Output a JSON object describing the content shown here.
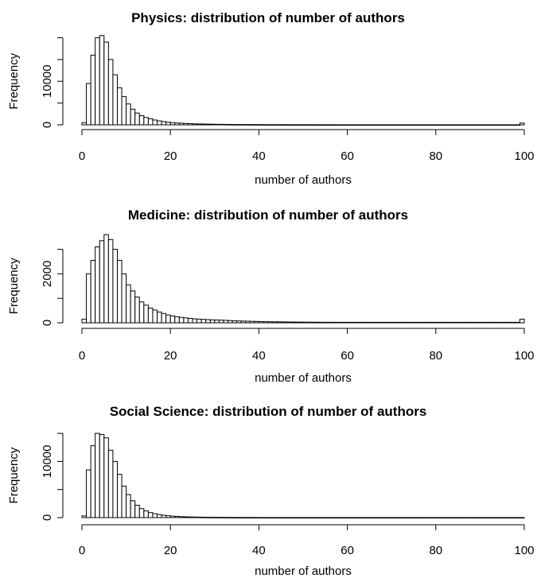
{
  "chart_data": [
    {
      "type": "bar",
      "title": "Physics: distribution of number of authors",
      "xlabel": "number of authors",
      "ylabel": "Frequency",
      "xlim": [
        0,
        100
      ],
      "ylim": [
        0,
        21000
      ],
      "xticks": [
        "0",
        "20",
        "40",
        "60",
        "80",
        "100"
      ],
      "yticks": [
        "0",
        "10000"
      ],
      "grid": false,
      "bin_width": 1,
      "values": [
        500,
        9500,
        16000,
        20000,
        20500,
        19000,
        15000,
        11500,
        8500,
        6500,
        4800,
        3600,
        2700,
        2100,
        1700,
        1400,
        1100,
        900,
        750,
        600,
        500,
        420,
        360,
        310,
        270,
        230,
        200,
        180,
        160,
        140,
        120,
        110,
        100,
        90,
        80,
        70,
        65,
        60,
        55,
        50,
        45,
        40,
        38,
        36,
        34,
        32,
        30,
        28,
        26,
        24,
        22,
        20,
        19,
        18,
        17,
        16,
        15,
        14,
        13,
        12,
        11,
        10,
        10,
        10,
        10,
        10,
        10,
        10,
        10,
        10,
        10,
        10,
        10,
        10,
        10,
        10,
        10,
        10,
        10,
        10,
        10,
        10,
        10,
        10,
        10,
        10,
        10,
        10,
        10,
        10,
        10,
        10,
        10,
        10,
        10,
        10,
        10,
        10,
        10,
        400
      ]
    },
    {
      "type": "bar",
      "title": "Medicine: distribution of number of authors",
      "xlabel": "number of authors",
      "ylabel": "Frequency",
      "xlim": [
        0,
        100
      ],
      "ylim": [
        0,
        3700
      ],
      "xticks": [
        "0",
        "20",
        "40",
        "60",
        "80",
        "100"
      ],
      "yticks": [
        "0",
        "2000"
      ],
      "grid": false,
      "bin_width": 1,
      "values": [
        150,
        2000,
        2550,
        3100,
        3350,
        3600,
        3400,
        3000,
        2550,
        2000,
        1550,
        1300,
        1050,
        850,
        720,
        600,
        520,
        440,
        380,
        320,
        280,
        250,
        220,
        200,
        180,
        160,
        150,
        140,
        130,
        120,
        115,
        110,
        100,
        90,
        80,
        75,
        70,
        65,
        60,
        55,
        50,
        45,
        42,
        40,
        38,
        36,
        34,
        32,
        30,
        28,
        26,
        25,
        24,
        23,
        22,
        21,
        20,
        20,
        20,
        20,
        20,
        20,
        20,
        20,
        20,
        20,
        20,
        20,
        20,
        20,
        20,
        20,
        20,
        20,
        20,
        20,
        20,
        20,
        20,
        20,
        20,
        20,
        20,
        20,
        20,
        20,
        20,
        20,
        20,
        20,
        20,
        20,
        20,
        20,
        20,
        20,
        20,
        20,
        20,
        150
      ]
    },
    {
      "type": "bar",
      "title": "Social Science: distribution of number of authors",
      "xlabel": "number of authors",
      "ylabel": "Frequency",
      "xlim": [
        0,
        100
      ],
      "ylim": [
        0,
        16000
      ],
      "xticks": [
        "0",
        "20",
        "40",
        "60",
        "80",
        "100"
      ],
      "yticks": [
        "0",
        "10000"
      ],
      "grid": false,
      "bin_width": 1,
      "values": [
        300,
        8500,
        12800,
        15000,
        14800,
        14200,
        12000,
        10000,
        7700,
        5600,
        4100,
        3000,
        2200,
        1600,
        1200,
        900,
        700,
        550,
        420,
        330,
        260,
        210,
        170,
        140,
        115,
        95,
        80,
        68,
        58,
        50,
        43,
        37,
        32,
        28,
        24,
        21,
        18,
        16,
        14,
        12,
        10,
        9,
        8,
        7,
        6,
        5,
        5,
        5,
        5,
        5,
        5,
        5,
        5,
        5,
        5,
        5,
        5,
        5,
        5,
        5,
        5,
        5,
        5,
        5,
        5,
        5,
        5,
        5,
        5,
        5,
        5,
        5,
        5,
        5,
        5,
        5,
        5,
        5,
        5,
        5,
        5,
        5,
        5,
        5,
        5,
        5,
        5,
        5,
        5,
        5,
        5,
        5,
        5,
        5,
        5,
        5,
        5,
        5,
        5,
        5
      ]
    }
  ]
}
